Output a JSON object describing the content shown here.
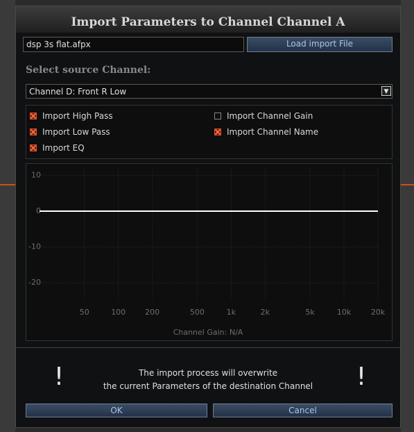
{
  "dialog": {
    "title": "Import Parameters to Channel Channel A",
    "file_name": "dsp 3s flat.afpx",
    "load_button": "Load import File",
    "source_label": "Select source Channel:",
    "source_channel": "Channel D: Front R Low",
    "options": [
      {
        "label": "Import High Pass",
        "checked": true
      },
      {
        "label": "Import Low Pass",
        "checked": true
      },
      {
        "label": "Import EQ",
        "checked": true
      },
      {
        "label": "Import Channel Gain",
        "checked": false
      },
      {
        "label": "Import Channel Name",
        "checked": true
      }
    ],
    "warning_mark": "!",
    "warning": [
      "The import process will overwrite",
      "the current Parameters of the destination Channel"
    ],
    "ok_button": "OK",
    "cancel_button": "Cancel"
  },
  "graph": {
    "type": "line",
    "xscale": "log",
    "grid": true,
    "color": "#ffffff",
    "xlim": [
      20,
      20000
    ],
    "ylim": [
      -25,
      12
    ],
    "xticks": [
      50,
      100,
      200,
      500,
      {
        "value": 1000,
        "label": "1k"
      },
      {
        "value": 2000,
        "label": "2k"
      },
      {
        "value": 5000,
        "label": "5k"
      },
      {
        "value": 10000,
        "label": "10k"
      },
      {
        "value": 20000,
        "label": "20k"
      }
    ],
    "yticks": [
      10,
      0,
      -10,
      -20
    ],
    "x": [
      20,
      20000
    ],
    "values": [
      0,
      0
    ],
    "caption": "Channel Gain: N/A"
  }
}
